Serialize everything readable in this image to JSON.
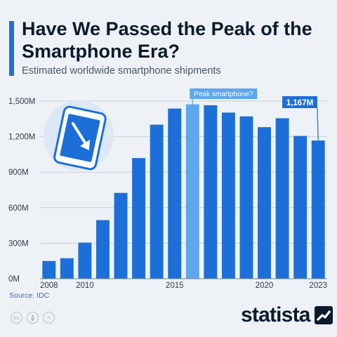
{
  "header": {
    "title": "Have We Passed the Peak of the Smartphone Era?",
    "subtitle": "Estimated worldwide smartphone shipments"
  },
  "footer": {
    "source": "Source: IDC",
    "logo_text": "statista",
    "license_icons": [
      "cc",
      "person",
      "="
    ]
  },
  "colors": {
    "bar": "#1c6fd8",
    "bar_highlight": "#5ea6ee",
    "callout": "#5ea6ee",
    "label_box": "#1c6fd8",
    "grid": "#c8d0da",
    "text": "#0b1a2c"
  },
  "chart_data": {
    "type": "bar",
    "title": "Have We Passed the Peak of the Smartphone Era?",
    "subtitle": "Estimated worldwide smartphone shipments",
    "x": [
      2008,
      2009,
      2010,
      2011,
      2012,
      2013,
      2014,
      2015,
      2016,
      2017,
      2018,
      2019,
      2020,
      2021,
      2022,
      2023
    ],
    "values": [
      150,
      173,
      305,
      495,
      725,
      1019,
      1301,
      1437,
      1473,
      1465,
      1403,
      1371,
      1280,
      1355,
      1206,
      1167
    ],
    "unit": "M",
    "xlabel": "",
    "ylabel": "",
    "ylim": [
      0,
      1500
    ],
    "yticks": [
      0,
      300,
      600,
      900,
      1200,
      1500
    ],
    "ytick_labels": [
      "0M",
      "300M",
      "600M",
      "900M",
      "1,200M",
      "1,500M"
    ],
    "xtick_labels": [
      "2008",
      "2010",
      "2015",
      "2020",
      "2023"
    ],
    "grid": true,
    "highlight": {
      "x": 2016,
      "annotation": "Peak smartphone?"
    },
    "value_label": {
      "x": 2023,
      "text": "1,167M"
    }
  }
}
